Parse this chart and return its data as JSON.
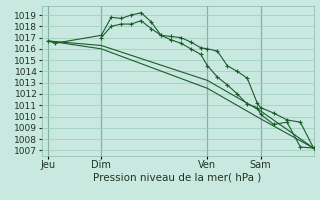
{
  "xlabel": "Pression niveau de la mer( hPa )",
  "bg_color": "#c8e8e0",
  "grid_color": "#99ccbb",
  "line_color": "#1a5c2a",
  "vline_color": "#557766",
  "ylim": [
    1006.5,
    1019.8
  ],
  "yticks": [
    1007,
    1008,
    1009,
    1010,
    1011,
    1012,
    1013,
    1014,
    1015,
    1016,
    1017,
    1018,
    1019
  ],
  "xtick_labels": [
    "Jeu",
    "Dim",
    "Ven",
    "Sam"
  ],
  "xtick_positions": [
    0,
    16,
    48,
    64
  ],
  "vline_positions": [
    0,
    16,
    48,
    64
  ],
  "xlim": [
    -2,
    80
  ],
  "line1_x": [
    0,
    2,
    16,
    19,
    22,
    25,
    28,
    31,
    34,
    37,
    40,
    43,
    46,
    48,
    51,
    54,
    57,
    60,
    63,
    64,
    68,
    72,
    76,
    80
  ],
  "line1_y": [
    1016.7,
    1016.5,
    1017.2,
    1018.8,
    1018.7,
    1019.0,
    1019.2,
    1018.4,
    1017.2,
    1017.1,
    1017.0,
    1016.6,
    1016.1,
    1016.0,
    1015.8,
    1014.5,
    1014.0,
    1013.4,
    1011.2,
    1010.8,
    1010.3,
    1009.7,
    1009.5,
    1007.2
  ],
  "line2_x": [
    16,
    19,
    22,
    25,
    28,
    31,
    34,
    37,
    40,
    43,
    46,
    48,
    51,
    54,
    57,
    60,
    63,
    64,
    68,
    72,
    76,
    80
  ],
  "line2_y": [
    1017.0,
    1018.0,
    1018.2,
    1018.2,
    1018.5,
    1017.8,
    1017.2,
    1016.8,
    1016.5,
    1016.0,
    1015.5,
    1014.5,
    1013.5,
    1012.8,
    1012.0,
    1011.1,
    1010.8,
    1010.2,
    1009.3,
    1009.5,
    1007.3,
    1007.2
  ],
  "line3_x": [
    0,
    16,
    48,
    64,
    80
  ],
  "line3_y": [
    1016.7,
    1016.3,
    1013.2,
    1010.5,
    1007.2
  ],
  "line4_x": [
    0,
    16,
    48,
    64,
    80
  ],
  "line4_y": [
    1016.7,
    1016.0,
    1012.5,
    1009.8,
    1007.2
  ]
}
